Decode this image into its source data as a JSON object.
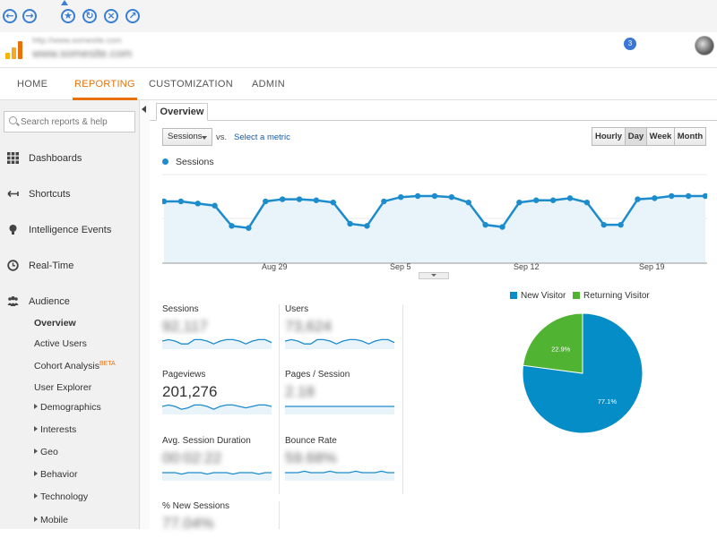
{
  "browser": {
    "back_icon": "arrow-left-icon",
    "forward_icon": "arrow-right-icon",
    "tools": [
      "star-icon",
      "refresh-icon",
      "close-icon",
      "open-external-icon"
    ]
  },
  "header": {
    "account_url": "http://www.somesite.com",
    "account_name": "www.somesite.com",
    "notification_count": "3"
  },
  "top_tabs": [
    {
      "label": "HOME"
    },
    {
      "label": "REPORTING"
    },
    {
      "label": "CUSTOMIZATION"
    },
    {
      "label": "ADMIN"
    }
  ],
  "sidebar": {
    "search_placeholder": "Search reports & help",
    "items": [
      {
        "label": "Dashboards",
        "icon": "grid-icon"
      },
      {
        "label": "Shortcuts",
        "icon": "shortcut-arrow-icon"
      },
      {
        "label": "Intelligence Events",
        "icon": "lightbulb-icon"
      },
      {
        "label": "Real-Time",
        "icon": "clock-icon"
      },
      {
        "label": "Audience",
        "icon": "people-icon"
      }
    ],
    "audience_children": [
      {
        "label": "Overview"
      },
      {
        "label": "Active Users"
      },
      {
        "label": "Cohort Analysis",
        "badge": "BETA"
      },
      {
        "label": "User Explorer"
      },
      {
        "label": "Demographics"
      },
      {
        "label": "Interests"
      },
      {
        "label": "Geo"
      },
      {
        "label": "Behavior"
      },
      {
        "label": "Technology"
      },
      {
        "label": "Mobile"
      }
    ]
  },
  "main": {
    "tab": "Overview",
    "metric_select": "Sessions",
    "vs": "vs.",
    "select_metric": "Select a metric",
    "granularity": [
      "Hourly",
      "Day",
      "Week",
      "Month"
    ],
    "active_granularity": "Day",
    "legend": "Sessions",
    "x_ticks": [
      "Aug 29",
      "Sep 5",
      "Sep 12",
      "Sep 19"
    ]
  },
  "chart_data": [
    {
      "type": "area",
      "series": [
        {
          "name": "Sessions",
          "values": [
            2900,
            2900,
            2800,
            2700,
            1750,
            1650,
            2900,
            3000,
            3000,
            2950,
            2850,
            1850,
            1750,
            2900,
            3100,
            3150,
            3150,
            3100,
            2850,
            1800,
            1700,
            2850,
            2950,
            2950,
            3050,
            2850,
            1800,
            1800,
            3000,
            3050,
            3150,
            3150,
            3150
          ]
        }
      ],
      "x_ticks": [
        "Aug 29",
        "Sep 5",
        "Sep 12",
        "Sep 19"
      ],
      "ylim": [
        0,
        4200
      ],
      "grid": true
    },
    {
      "type": "pie",
      "categories": [
        "New Visitor",
        "Returning Visitor"
      ],
      "values": [
        77.1,
        22.9
      ],
      "colors": [
        "#058dc7",
        "#50b432"
      ]
    }
  ],
  "metrics": [
    {
      "name": "Sessions",
      "value": "92,117",
      "blurred": true,
      "spark": [
        5,
        6,
        5,
        3,
        3,
        6,
        6,
        5,
        3,
        5,
        6,
        6,
        5,
        3,
        5,
        6,
        6,
        4
      ]
    },
    {
      "name": "Users",
      "value": "73,624",
      "blurred": true,
      "spark": [
        5,
        6,
        5,
        3,
        3,
        6,
        6,
        5,
        3,
        5,
        6,
        6,
        5,
        3,
        5,
        6,
        6,
        4
      ]
    },
    {
      "name": "Pageviews",
      "value": "201,276",
      "blurred": false,
      "spark": [
        5,
        6,
        5,
        3,
        4,
        6,
        6,
        5,
        3,
        5,
        6,
        6,
        5,
        4,
        5,
        6,
        6,
        5
      ]
    },
    {
      "name": "Pages / Session",
      "value": "2.18",
      "blurred": true,
      "spark": [
        5,
        5,
        5,
        5,
        5,
        5,
        5,
        5,
        5,
        5,
        5,
        5,
        5,
        5,
        5,
        5,
        5,
        5
      ]
    },
    {
      "name": "Avg. Session Duration",
      "value": "00:02:22",
      "blurred": true,
      "spark": [
        5,
        5,
        5,
        4,
        5,
        5,
        5,
        4,
        5,
        5,
        5,
        4,
        5,
        5,
        5,
        4,
        5,
        5
      ]
    },
    {
      "name": "Bounce Rate",
      "value": "59.68%",
      "blurred": true,
      "spark": [
        5,
        5,
        5,
        6,
        5,
        5,
        5,
        6,
        5,
        5,
        5,
        6,
        5,
        5,
        5,
        6,
        5,
        5
      ]
    },
    {
      "name": "% New Sessions",
      "value": "77.04%",
      "blurred": true,
      "spark": []
    }
  ],
  "pie": {
    "legend": [
      "New Visitor",
      "Returning Visitor"
    ],
    "labels": [
      "77.1%",
      "22.9%"
    ]
  },
  "colors": {
    "accent": "#e8710a",
    "series": "#1c8ccc",
    "area": "#e9f3fa"
  }
}
